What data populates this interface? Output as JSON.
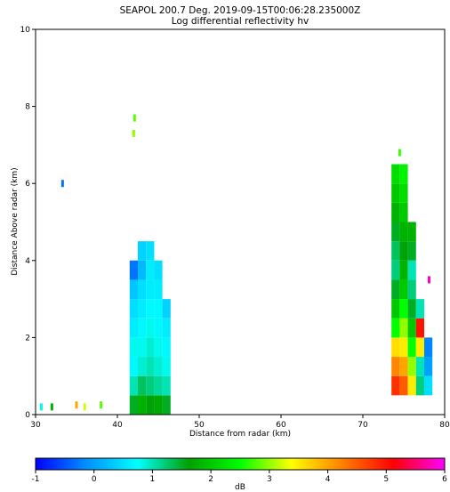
{
  "chart_data": {
    "type": "heatmap",
    "title": "SEAPOL 200.7 Deg. 2019-09-15T00:06:28.235000Z",
    "subtitle": "Log differential reflectivity hv",
    "x_label": "Distance from radar (km)",
    "y_label": "Distance Above radar  (km)",
    "xlim": [
      30,
      80
    ],
    "xticks": [
      30,
      40,
      50,
      60,
      70,
      80
    ],
    "ylim": [
      0,
      10
    ],
    "yticks": [
      0,
      2,
      4,
      6,
      8,
      10
    ],
    "colorbar_label": "dB",
    "clim": [
      -1,
      6
    ],
    "cticks": [
      -1,
      0,
      1,
      2,
      3,
      4,
      5,
      6
    ],
    "colormap": [
      "#0000ff",
      "#0090ff",
      "#00ffff",
      "#00a000",
      "#00ff00",
      "#ffff00",
      "#ff8000",
      "#ff0000",
      "#ff00ff"
    ],
    "x": [
      42,
      42,
      42,
      42,
      42,
      42,
      42,
      42,
      43,
      43,
      43,
      43,
      43,
      43,
      43,
      43,
      43,
      44,
      44,
      44,
      44,
      44,
      44,
      44,
      44,
      44,
      45,
      45,
      45,
      45,
      45,
      45,
      45,
      45,
      46,
      46,
      46,
      46,
      46,
      46,
      74,
      74,
      74,
      74,
      74,
      74,
      74,
      74,
      74,
      74,
      74,
      74,
      75,
      75,
      75,
      75,
      75,
      75,
      75,
      75,
      75,
      75,
      75,
      75,
      76,
      76,
      76,
      76,
      76,
      76,
      76,
      76,
      76,
      77,
      77,
      77,
      77,
      77,
      78,
      78,
      78,
      33.3,
      42,
      42.1,
      74.5,
      78.1,
      30.7,
      32,
      35,
      36,
      38
    ],
    "y": [
      0.25,
      0.75,
      1.25,
      1.75,
      2.25,
      2.75,
      3.25,
      3.75,
      0.25,
      0.75,
      1.25,
      1.75,
      2.25,
      2.75,
      3.25,
      3.75,
      4.25,
      0.25,
      0.75,
      1.25,
      1.75,
      2.25,
      2.75,
      3.25,
      3.75,
      4.25,
      0.25,
      0.75,
      1.25,
      1.75,
      2.25,
      2.75,
      3.25,
      3.75,
      0.25,
      0.75,
      1.25,
      1.75,
      2.25,
      2.75,
      0.75,
      1.25,
      1.75,
      2.25,
      2.75,
      3.25,
      3.75,
      4.25,
      4.75,
      5.25,
      5.75,
      6.25,
      0.75,
      1.25,
      1.75,
      2.25,
      2.75,
      3.25,
      3.75,
      4.25,
      4.75,
      5.25,
      5.75,
      6.25,
      0.75,
      1.25,
      1.75,
      2.25,
      2.75,
      3.25,
      3.75,
      4.25,
      4.75,
      0.75,
      1.25,
      1.75,
      2.25,
      2.75,
      0.75,
      1.25,
      1.75,
      6.0,
      7.3,
      7.7,
      6.8,
      3.5,
      0.2,
      0.2,
      0.25,
      0.2,
      0.25
    ],
    "values": [
      1.5,
      1.0,
      0.7,
      0.8,
      0.6,
      0.5,
      0.3,
      -0.3,
      1.8,
      1.3,
      0.9,
      0.8,
      0.7,
      0.6,
      0.5,
      0.2,
      0.4,
      1.6,
      1.2,
      1.0,
      0.9,
      0.8,
      0.7,
      0.6,
      0.6,
      0.5,
      1.7,
      1.1,
      0.9,
      0.8,
      0.7,
      0.7,
      0.6,
      0.5,
      1.5,
      1.0,
      0.8,
      0.7,
      0.6,
      0.4,
      4.8,
      4.2,
      3.6,
      2.5,
      2.0,
      1.5,
      1.2,
      1.3,
      1.5,
      1.8,
      2.0,
      2.2,
      4.5,
      4.0,
      3.5,
      3.0,
      2.5,
      2.0,
      1.8,
      1.6,
      1.8,
      2.0,
      2.2,
      2.4,
      3.5,
      3.0,
      2.5,
      2.0,
      1.5,
      1.2,
      1.0,
      1.5,
      1.8,
      1.2,
      1.0,
      3.5,
      5.0,
      1.0,
      0.5,
      0.0,
      -0.2,
      -0.3,
      3.0,
      2.8,
      2.7,
      5.8,
      0.8,
      1.8,
      4.0,
      3.2,
      2.8
    ]
  }
}
